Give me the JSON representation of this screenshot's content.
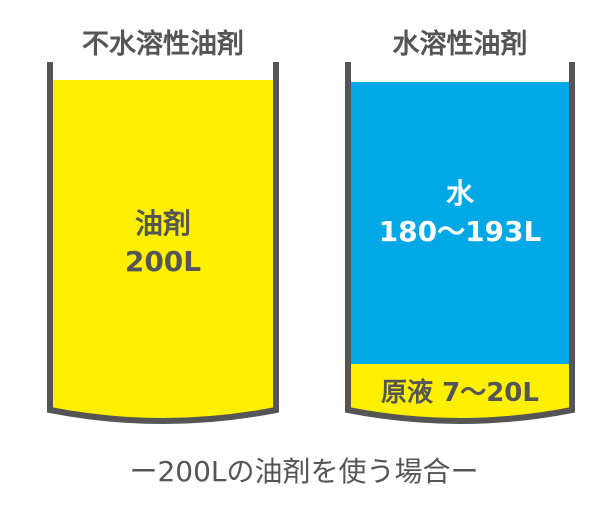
{
  "colors": {
    "oil": "#fff000",
    "water": "#00a8e6",
    "outline": "#555555",
    "text": "#555555"
  },
  "left": {
    "title": "不水溶性油剤",
    "content_line1": "油剤",
    "content_line2": "200L"
  },
  "right": {
    "title": "水溶性油剤",
    "water_line1": "水",
    "water_line2": "180〜193L",
    "concentrate": "原液 7〜20L"
  },
  "caption": "ー200Lの油剤を使う場合ー"
}
